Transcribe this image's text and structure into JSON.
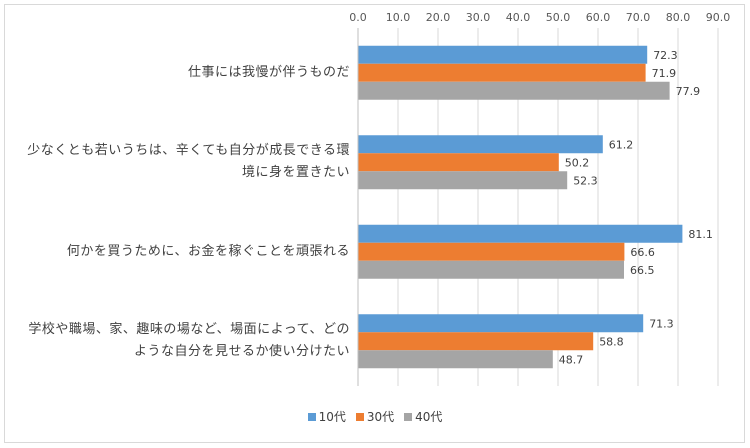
{
  "chart_data": {
    "type": "bar",
    "orientation": "horizontal",
    "categories": [
      [
        "仕事には我慢が伴うものだ"
      ],
      [
        "少なくとも若いうちは、辛くても自分が成長できる環",
        "境に身を置きたい"
      ],
      [
        "何かを買うために、お金を稼ぐことを頑張れる"
      ],
      [
        "学校や職場、家、趣味の場など、場面によって、どの",
        "ような自分を見せるか使い分けたい"
      ]
    ],
    "series": [
      {
        "name": "10代",
        "color": "#5b9bd5",
        "values": [
          72.3,
          61.2,
          81.1,
          71.3
        ]
      },
      {
        "name": "30代",
        "color": "#ed7d31",
        "values": [
          71.9,
          50.2,
          66.6,
          58.8
        ]
      },
      {
        "name": "40代",
        "color": "#a5a5a5",
        "values": [
          77.9,
          52.3,
          66.5,
          48.7
        ]
      }
    ],
    "xlim": [
      0,
      90
    ],
    "xticks": [
      "0.0",
      "10.0",
      "20.0",
      "30.0",
      "40.0",
      "50.0",
      "60.0",
      "70.0",
      "80.0",
      "90.0"
    ],
    "x_axis_position": "top",
    "grid": true,
    "legend_position": "bottom",
    "data_labels": true
  }
}
